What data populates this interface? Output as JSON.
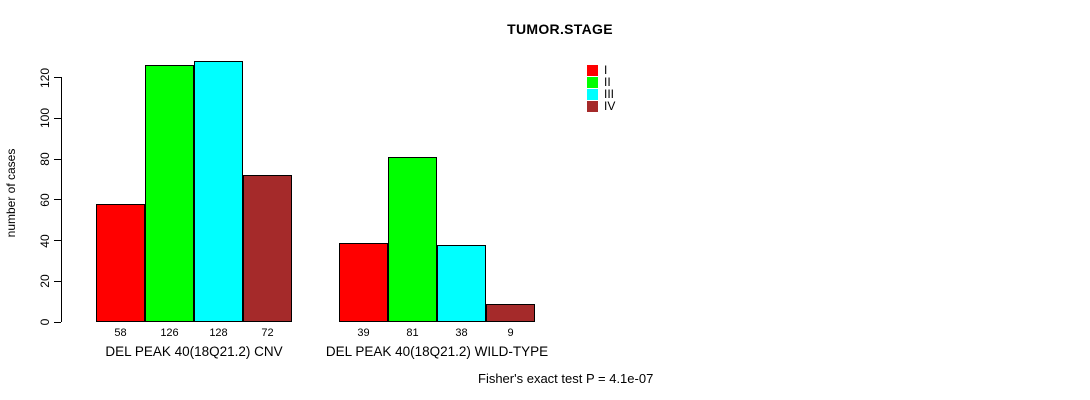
{
  "title": "TUMOR.STAGE",
  "footer": "Fisher's exact test P = 4.1e-07",
  "y_axis": {
    "label": "number of cases",
    "ticks": [
      0,
      20,
      40,
      60,
      80,
      100,
      120
    ]
  },
  "legend": {
    "position": "top-right",
    "entries": [
      {
        "label": "I",
        "color": "#ff0000"
      },
      {
        "label": "II",
        "color": "#00ff00"
      },
      {
        "label": "III",
        "color": "#00ffff"
      },
      {
        "label": "IV",
        "color": "#a52a2a"
      }
    ]
  },
  "chart_data": {
    "type": "bar",
    "title": "TUMOR.STAGE",
    "xlabel": "",
    "ylabel": "number of cases",
    "ylim": [
      0,
      128
    ],
    "y_ticks": [
      0,
      20,
      40,
      60,
      80,
      100,
      120
    ],
    "grid": false,
    "legend_position": "top-right",
    "categories": [
      "DEL PEAK 40(18Q21.2) CNV",
      "DEL PEAK 40(18Q21.2) WILD-TYPE"
    ],
    "series": [
      {
        "name": "I",
        "color": "#ff0000",
        "values": [
          58,
          39
        ]
      },
      {
        "name": "II",
        "color": "#00ff00",
        "values": [
          126,
          81
        ]
      },
      {
        "name": "III",
        "color": "#00ffff",
        "values": [
          128,
          38
        ]
      },
      {
        "name": "IV",
        "color": "#a52a2a",
        "values": [
          72,
          9
        ]
      }
    ],
    "bar_value_labels": [
      [
        58,
        126,
        128,
        72
      ],
      [
        39,
        81,
        38,
        9
      ]
    ],
    "annotation": "Fisher's exact test P = 4.1e-07",
    "axis_color": "#000000",
    "bar_border_color": "#000000"
  }
}
